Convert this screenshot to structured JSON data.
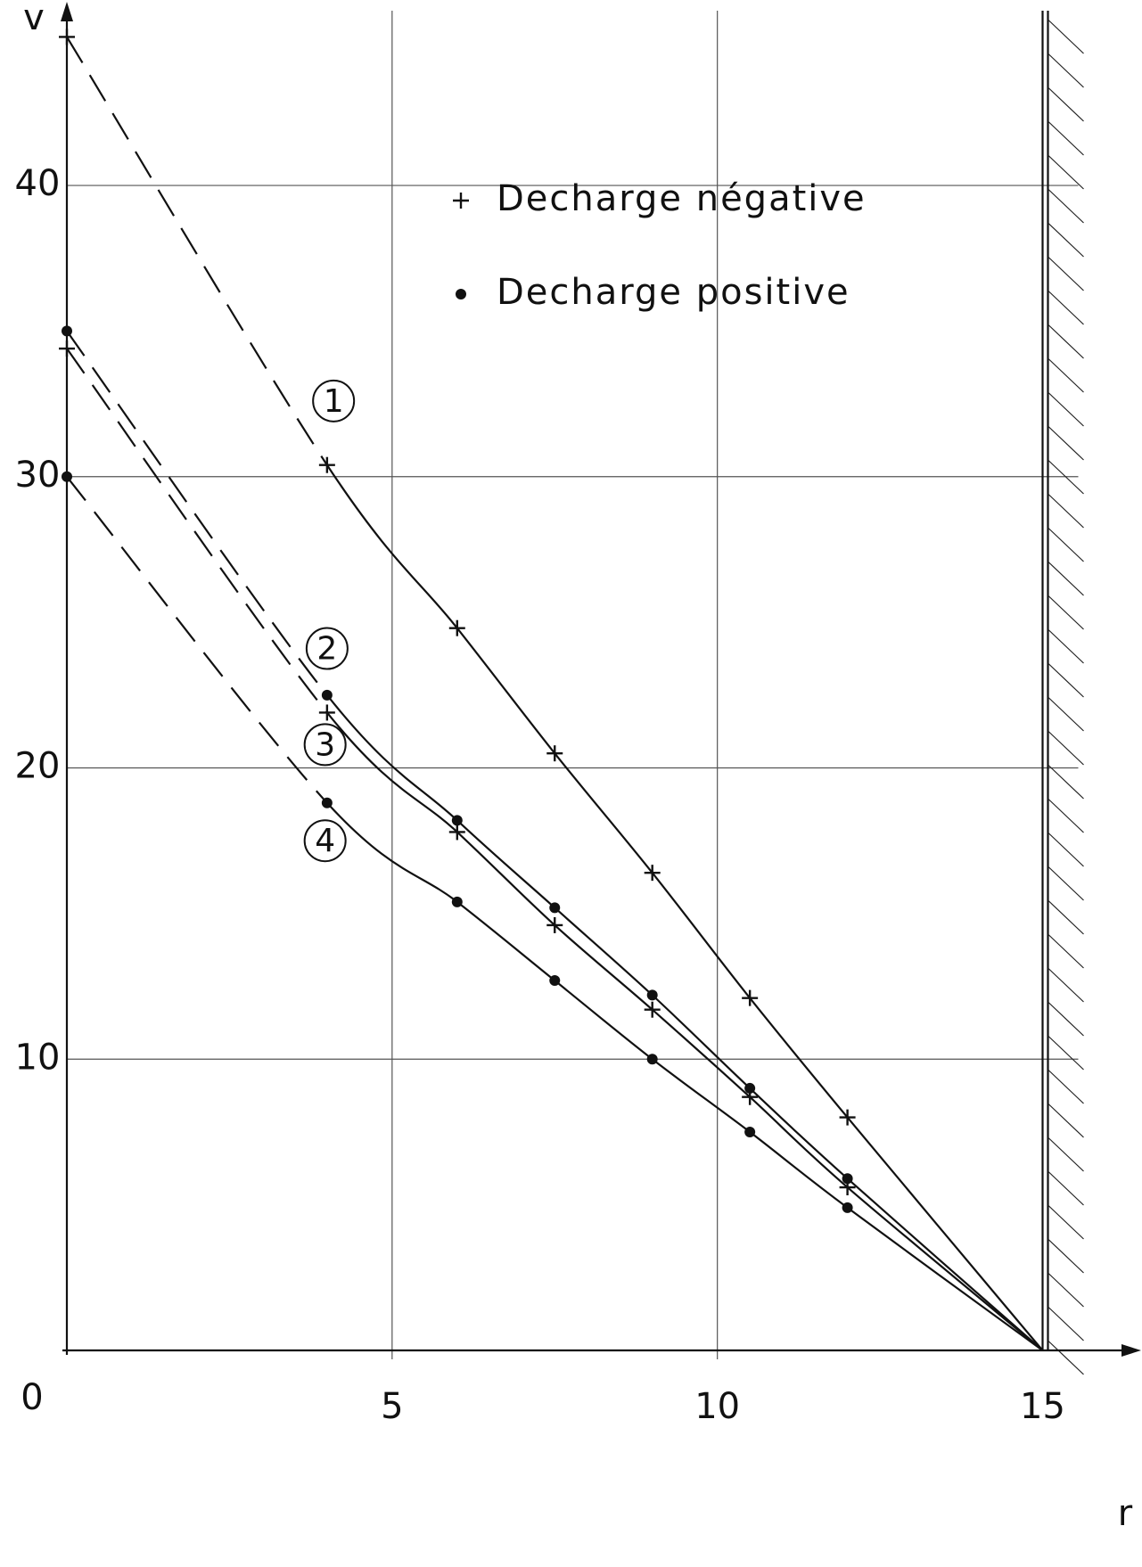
{
  "chart_data": {
    "type": "line",
    "x_label": "r",
    "y_label": "v",
    "x": [
      0,
      4,
      6,
      7.5,
      9,
      10.5,
      12,
      15
    ],
    "series": [
      {
        "name": "1",
        "marker": "plus",
        "color": "#111111",
        "values": [
          45.1,
          30.4,
          24.8,
          20.5,
          16.4,
          12.1,
          8.0,
          0
        ]
      },
      {
        "name": "2",
        "marker": "dot",
        "color": "#111111",
        "values": [
          35.0,
          22.5,
          18.2,
          15.2,
          12.2,
          9.0,
          5.9,
          0
        ]
      },
      {
        "name": "3",
        "marker": "plus",
        "color": "#111111",
        "values": [
          34.4,
          21.9,
          17.8,
          14.6,
          11.7,
          8.7,
          5.6,
          0
        ]
      },
      {
        "name": "4",
        "marker": "dot",
        "color": "#111111",
        "values": [
          30.0,
          18.8,
          15.4,
          12.7,
          10.0,
          7.5,
          4.9,
          0
        ]
      }
    ],
    "legend": [
      {
        "marker": "plus",
        "label": "Decharge négative"
      },
      {
        "marker": "dot",
        "label": "Decharge positive"
      }
    ],
    "xlim": [
      0,
      16.35
    ],
    "ylim": [
      0,
      46
    ],
    "xticks": [
      5,
      10,
      15
    ],
    "yticks": [
      0,
      10,
      20,
      30,
      40
    ],
    "grid": true
  }
}
